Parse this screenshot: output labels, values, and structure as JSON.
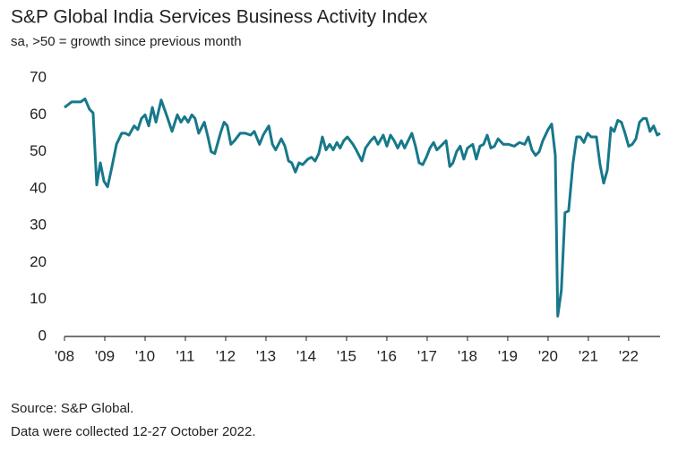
{
  "chart_data": {
    "type": "line",
    "title": "S&P Global India Services Business Activity Index",
    "subtitle": "sa, >50 = growth since previous month",
    "footnotes": [
      "Source: S&P Global.",
      "Data were collected 12-27 October 2022."
    ],
    "series": [
      {
        "name": "Business Activity Index",
        "color": "#17788a",
        "x": [
          2008.0,
          2008.18,
          2008.4,
          2008.51,
          2008.62,
          2008.71,
          2008.8,
          2008.89,
          2008.98,
          2009.07,
          2009.16,
          2009.29,
          2009.42,
          2009.51,
          2009.6,
          2009.73,
          2009.82,
          2009.91,
          2010.0,
          2010.09,
          2010.18,
          2010.27,
          2010.4,
          2010.53,
          2010.67,
          2010.8,
          2010.89,
          2010.98,
          2011.07,
          2011.16,
          2011.24,
          2011.33,
          2011.47,
          2011.56,
          2011.64,
          2011.73,
          2011.87,
          2011.96,
          2012.04,
          2012.13,
          2012.22,
          2012.36,
          2012.49,
          2012.62,
          2012.71,
          2012.84,
          2012.93,
          2013.07,
          2013.16,
          2013.24,
          2013.38,
          2013.47,
          2013.56,
          2013.64,
          2013.73,
          2013.82,
          2013.91,
          2014.04,
          2014.13,
          2014.22,
          2014.31,
          2014.4,
          2014.49,
          2014.58,
          2014.67,
          2014.76,
          2014.84,
          2014.93,
          2015.02,
          2015.16,
          2015.24,
          2015.38,
          2015.47,
          2015.6,
          2015.69,
          2015.78,
          2015.91,
          2016.0,
          2016.09,
          2016.18,
          2016.27,
          2016.36,
          2016.44,
          2016.53,
          2016.62,
          2016.71,
          2016.8,
          2016.89,
          2016.98,
          2017.07,
          2017.16,
          2017.24,
          2017.38,
          2017.47,
          2017.56,
          2017.64,
          2017.73,
          2017.82,
          2017.91,
          2018.0,
          2018.13,
          2018.22,
          2018.31,
          2018.4,
          2018.49,
          2018.58,
          2018.67,
          2018.76,
          2018.89,
          2019.02,
          2019.16,
          2019.29,
          2019.42,
          2019.51,
          2019.6,
          2019.69,
          2019.78,
          2019.87,
          2020.0,
          2020.09,
          2020.18,
          2020.24,
          2020.33,
          2020.42,
          2020.51,
          2020.62,
          2020.71,
          2020.8,
          2020.89,
          2020.98,
          2021.07,
          2021.2,
          2021.29,
          2021.38,
          2021.47,
          2021.56,
          2021.64,
          2021.73,
          2021.82,
          2021.91,
          2022.0,
          2022.09,
          2022.18,
          2022.27,
          2022.36,
          2022.44,
          2022.53,
          2022.62,
          2022.71,
          2022.78
        ],
        "values": [
          62,
          63.5,
          63.5,
          64.3,
          61.5,
          60.5,
          41,
          47,
          42,
          40.5,
          45,
          52,
          55,
          55,
          54.5,
          57,
          56,
          59,
          60,
          57,
          62,
          58,
          64,
          60,
          55.5,
          60,
          58,
          59.5,
          58,
          60,
          59,
          55,
          58,
          54,
          50,
          49.5,
          55,
          58,
          57,
          52,
          53,
          55,
          55,
          54.5,
          55.5,
          52,
          54.5,
          57,
          52,
          50.5,
          53.5,
          51.5,
          47.5,
          47,
          44.5,
          47,
          46.5,
          48,
          48.5,
          47.5,
          49.5,
          54,
          50.5,
          52,
          50.5,
          52.5,
          51,
          53,
          54,
          52,
          50.5,
          47.5,
          51,
          53,
          54,
          52,
          54.5,
          51.5,
          54.5,
          53,
          51,
          53,
          51,
          53,
          55,
          51.5,
          47,
          46.5,
          48.5,
          51,
          52.5,
          50.5,
          52,
          53,
          46,
          47,
          50,
          51.5,
          48,
          51,
          52,
          48,
          51.5,
          52,
          54.5,
          51,
          51.5,
          53.5,
          52,
          52,
          51.5,
          52.5,
          52,
          54,
          50.5,
          49,
          50,
          53,
          56,
          57.5,
          49,
          5.5,
          12.5,
          33.5,
          34,
          47,
          54,
          54,
          52.5,
          55,
          54,
          54,
          46.5,
          41.5,
          45,
          56.5,
          55.5,
          58.5,
          58,
          55,
          51.5,
          52,
          53.5,
          58,
          59,
          59,
          55.5,
          57,
          54.5,
          55
        ]
      }
    ],
    "xlim": [
      2008,
      2022.78
    ],
    "xticks": [
      {
        "value": 2008,
        "label": "'08"
      },
      {
        "value": 2009,
        "label": "'09"
      },
      {
        "value": 2010,
        "label": "'10"
      },
      {
        "value": 2011,
        "label": "'11"
      },
      {
        "value": 2012,
        "label": "'12"
      },
      {
        "value": 2013,
        "label": "'13"
      },
      {
        "value": 2014,
        "label": "'14"
      },
      {
        "value": 2015,
        "label": "'15"
      },
      {
        "value": 2016,
        "label": "'16"
      },
      {
        "value": 2017,
        "label": "'17"
      },
      {
        "value": 2018,
        "label": "'18"
      },
      {
        "value": 2019,
        "label": "'19"
      },
      {
        "value": 2020,
        "label": "'20"
      },
      {
        "value": 2021,
        "label": "'21"
      },
      {
        "value": 2022,
        "label": "'22"
      }
    ],
    "ylim": [
      0,
      70
    ],
    "yticks": [
      0,
      10,
      20,
      30,
      40,
      50,
      60,
      70
    ]
  }
}
